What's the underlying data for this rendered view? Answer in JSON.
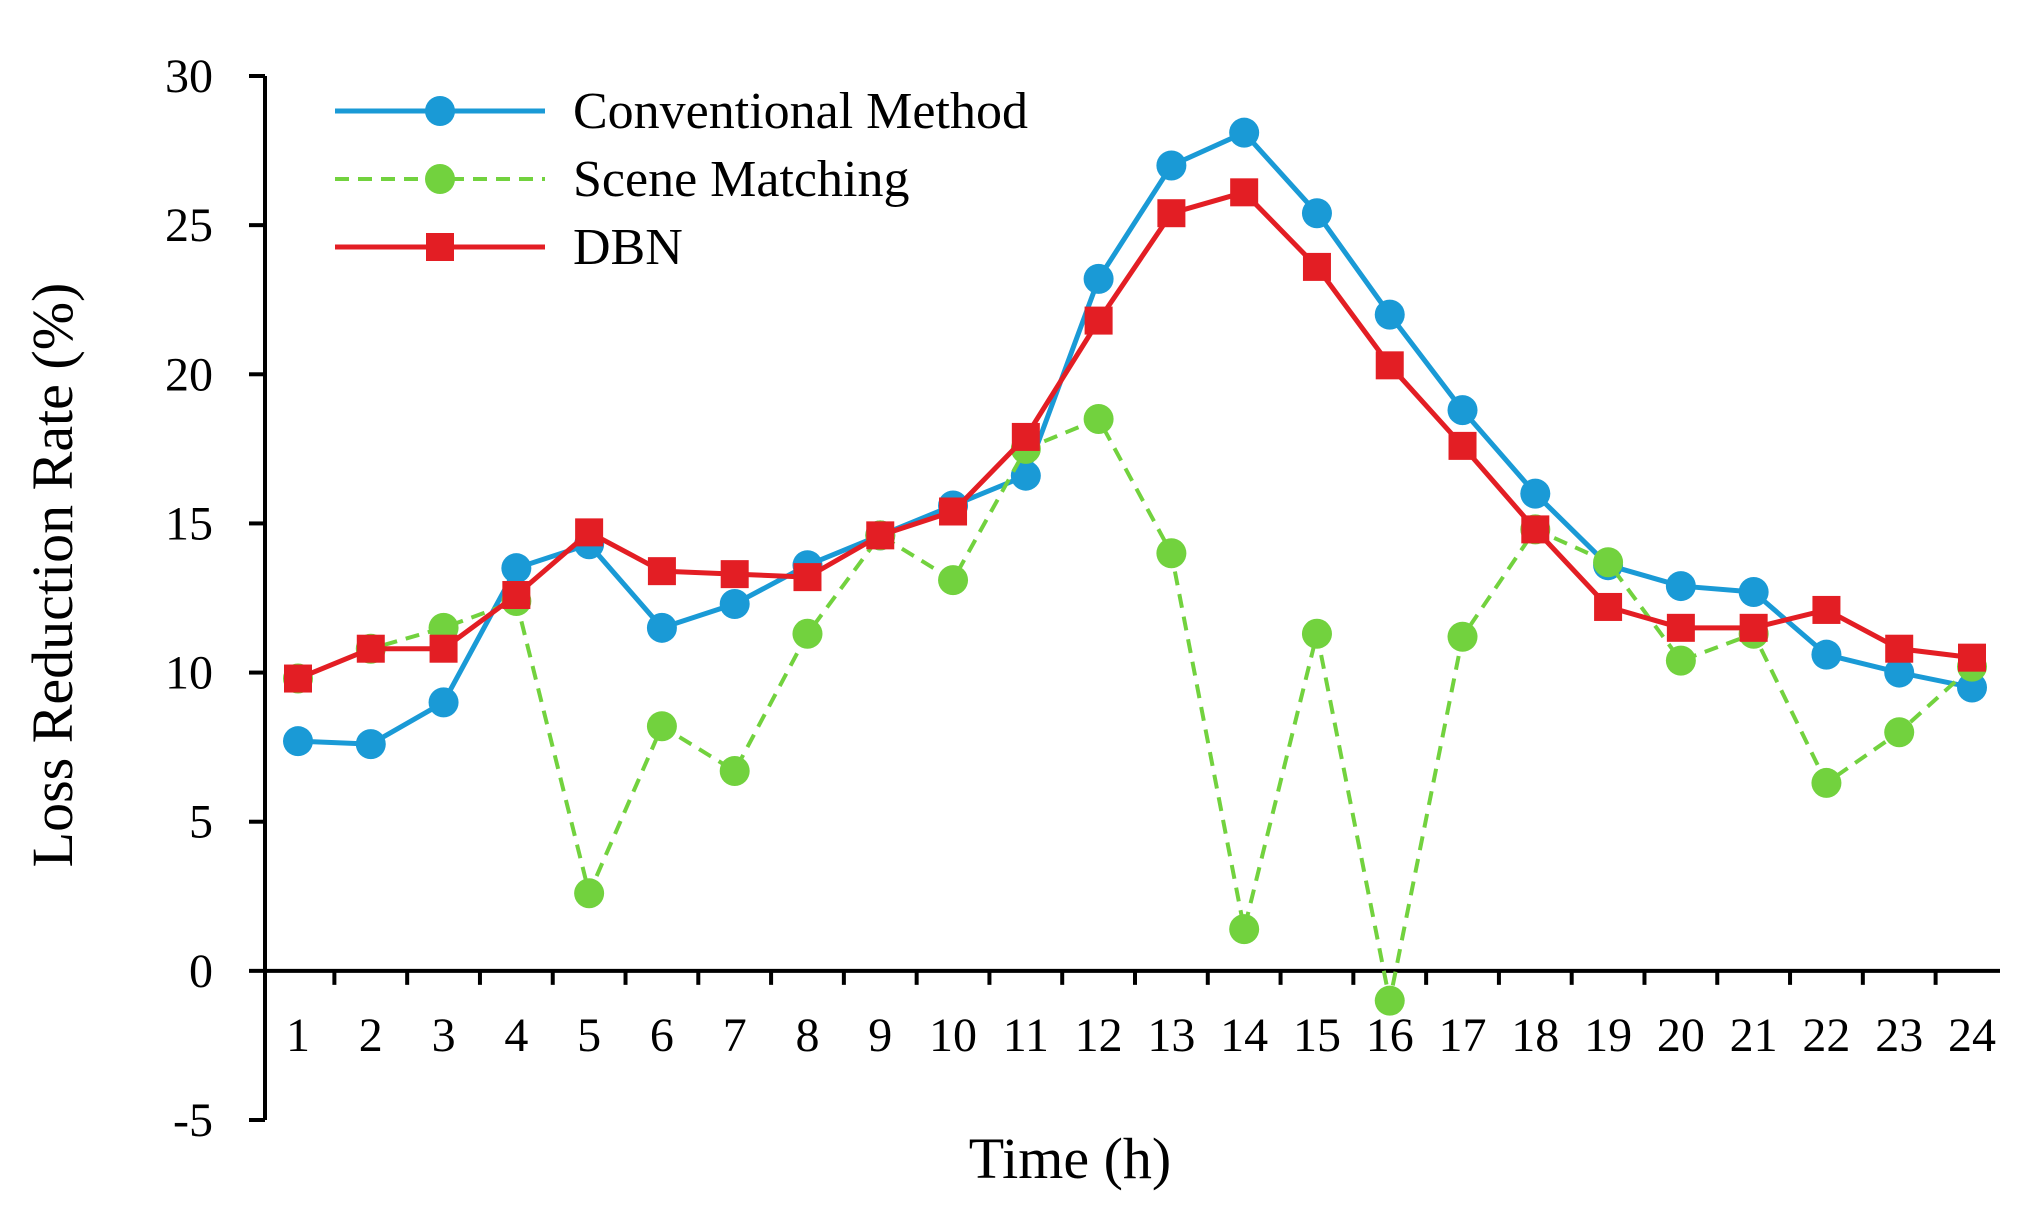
{
  "chart_data": {
    "type": "line",
    "title": "",
    "xlabel": "Time (h)",
    "ylabel": "Loss Reduction Rate (%)",
    "ylim": [
      -5,
      30
    ],
    "yticks": [
      -5,
      0,
      5,
      10,
      15,
      20,
      25,
      30
    ],
    "ytick_labels": [
      "-5",
      "0",
      "5",
      "10",
      "15",
      "20",
      "25",
      "30"
    ],
    "categories": [
      "1",
      "2",
      "3",
      "4",
      "5",
      "6",
      "7",
      "8",
      "9",
      "10",
      "11",
      "12",
      "13",
      "14",
      "15",
      "16",
      "17",
      "18",
      "19",
      "20",
      "21",
      "22",
      "23",
      "24"
    ],
    "grid": false,
    "legend_position": "top-left",
    "series": [
      {
        "name": "Conventional Method",
        "color": "#1a9ad6",
        "line_style": "solid",
        "marker": "circle",
        "values": [
          7.7,
          7.6,
          9.0,
          13.5,
          14.3,
          11.5,
          12.3,
          13.6,
          14.6,
          15.6,
          16.6,
          23.2,
          27.0,
          28.1,
          25.4,
          22.0,
          18.8,
          16.0,
          13.6,
          12.9,
          12.7,
          10.6,
          10.0,
          9.5
        ]
      },
      {
        "name": "Scene Matching",
        "color": "#72d23e",
        "line_style": "dashed",
        "marker": "circle",
        "values": [
          9.8,
          10.8,
          11.5,
          12.4,
          2.6,
          8.2,
          6.7,
          11.3,
          14.6,
          13.1,
          17.5,
          18.5,
          14.0,
          1.4,
          11.3,
          -1.0,
          11.2,
          14.8,
          13.7,
          10.4,
          11.3,
          6.3,
          8.0,
          10.2
        ]
      },
      {
        "name": "DBN",
        "color": "#e31e24",
        "line_style": "solid",
        "marker": "square",
        "values": [
          9.8,
          10.8,
          10.8,
          12.6,
          14.7,
          13.4,
          13.3,
          13.2,
          14.6,
          15.4,
          17.9,
          21.8,
          25.4,
          26.1,
          23.6,
          20.3,
          17.6,
          14.8,
          12.2,
          11.5,
          11.5,
          12.1,
          10.8,
          10.5
        ]
      }
    ]
  }
}
